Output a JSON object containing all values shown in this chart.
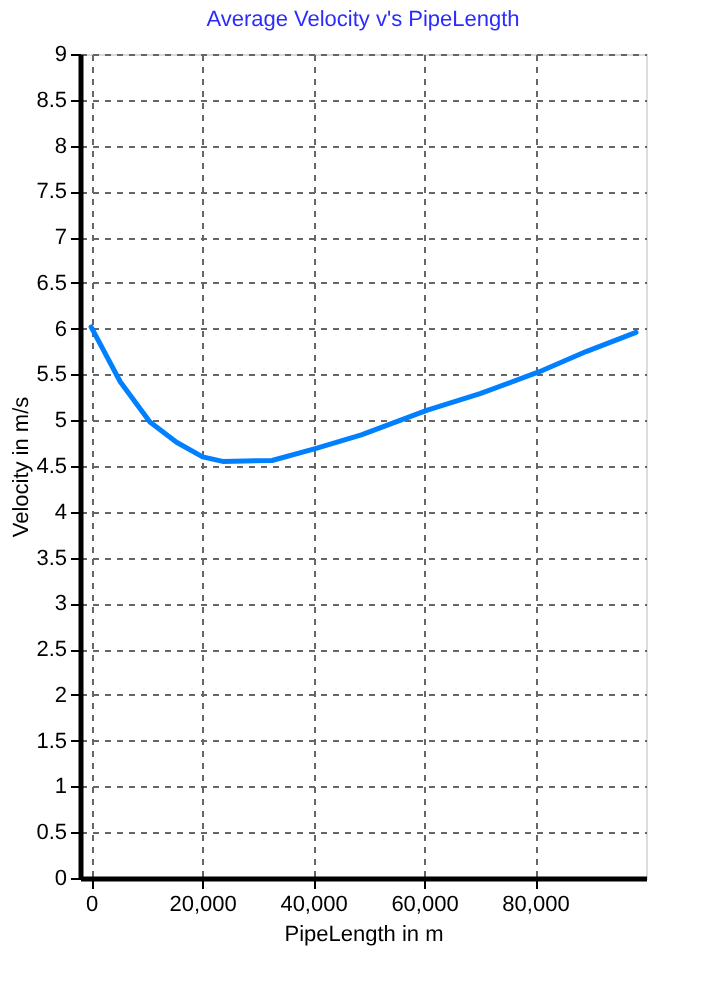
{
  "chart_data": {
    "type": "line",
    "title": "Average Velocity v's PipeLength",
    "xlabel": "PipeLength in m",
    "ylabel": "Velocity in m/s",
    "x": [
      0,
      5250,
      10600,
      15400,
      20100,
      23700,
      32600,
      40400,
      48700,
      60600,
      70100,
      80800,
      89200,
      98200
    ],
    "series": [
      {
        "color": "#0080ff",
        "values": [
          6.02,
          5.42,
          4.98,
          4.76,
          4.6,
          4.55,
          4.56,
          4.69,
          4.84,
          5.11,
          5.29,
          5.53,
          5.75,
          5.96
        ]
      }
    ],
    "xlim": [
      -2000,
      100000
    ],
    "xticks": [
      {
        "value": 0,
        "label": "0"
      },
      {
        "value": 20000,
        "label": "20,000"
      },
      {
        "value": 40000,
        "label": "40,000"
      },
      {
        "value": 60000,
        "label": "60,000"
      },
      {
        "value": 80000,
        "label": "80,000"
      }
    ],
    "ylim": [
      0,
      9
    ],
    "yticks": [
      0,
      0.5,
      1,
      1.5,
      2,
      2.5,
      3,
      3.5,
      4,
      4.5,
      5,
      5.5,
      6,
      6.5,
      7,
      7.5,
      8,
      8.5,
      9
    ],
    "grid": true,
    "marker": "none",
    "line_style": "solid"
  }
}
